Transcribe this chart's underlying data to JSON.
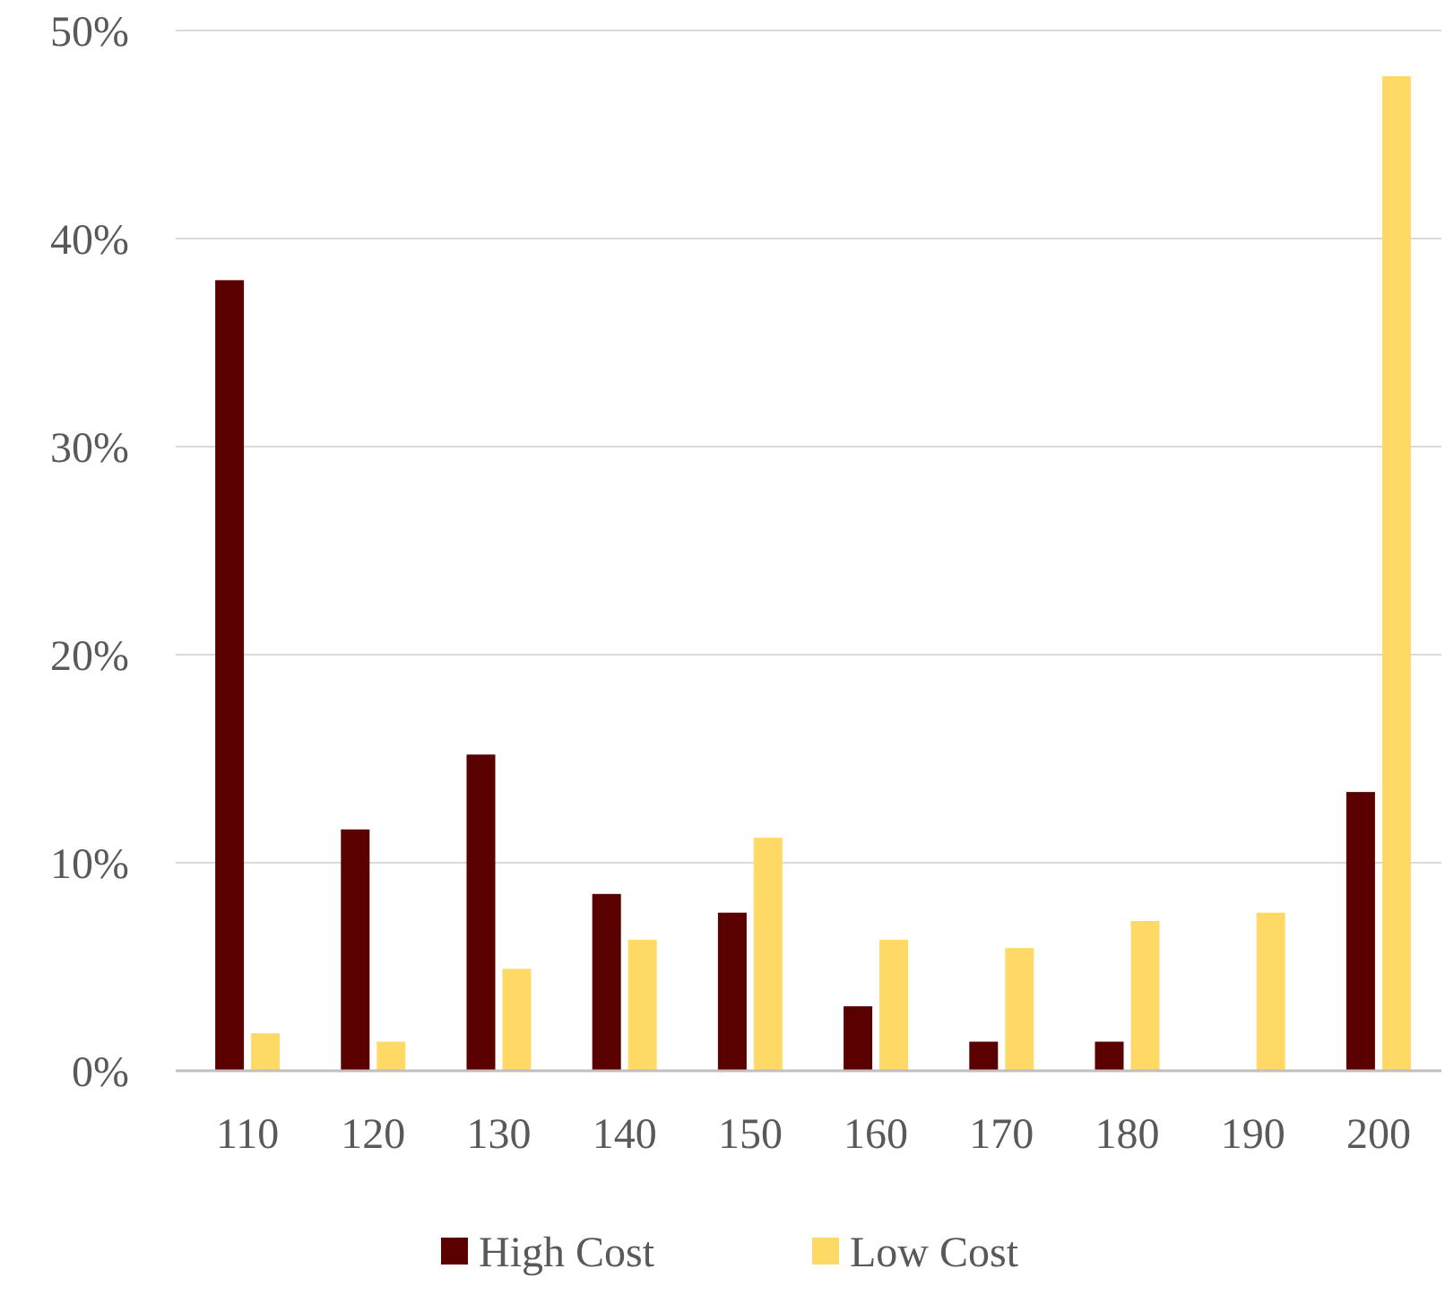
{
  "chart_data": {
    "type": "bar",
    "categories": [
      "110",
      "120",
      "130",
      "140",
      "150",
      "160",
      "170",
      "180",
      "190",
      "200"
    ],
    "series": [
      {
        "name": "High Cost",
        "color": "#5a0000",
        "values": [
          38,
          11.6,
          15.2,
          8.5,
          7.6,
          3.1,
          1.4,
          1.4,
          null,
          13.4
        ]
      },
      {
        "name": "Low Cost",
        "color": "#ffd966",
        "values": [
          1.8,
          1.4,
          4.9,
          6.3,
          11.2,
          6.3,
          5.9,
          7.2,
          7.6,
          47.8
        ]
      }
    ],
    "ylim": [
      0,
      50
    ],
    "yticks": [
      {
        "value": 0,
        "label": "0%"
      },
      {
        "value": 10,
        "label": "10%"
      },
      {
        "value": 20,
        "label": "20%"
      },
      {
        "value": 30,
        "label": "30%"
      },
      {
        "value": 40,
        "label": "40%"
      },
      {
        "value": 50,
        "label": "50%"
      }
    ],
    "grid": "y",
    "legend": "bottom"
  }
}
